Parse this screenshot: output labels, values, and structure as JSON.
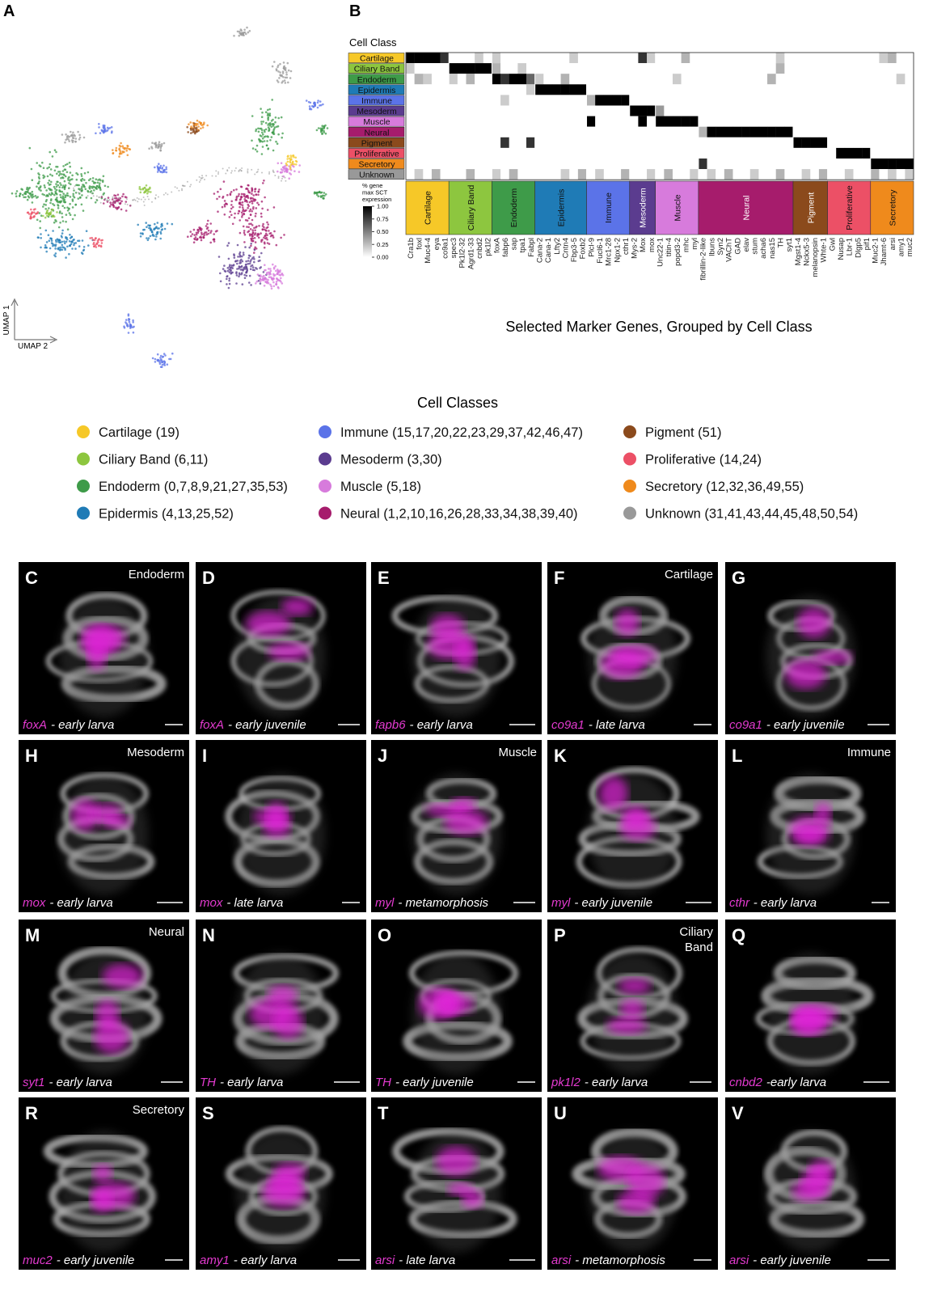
{
  "panels": {
    "a": "A",
    "b": "B"
  },
  "umap": {
    "axis_y": "UMAP 1",
    "axis_x": "UMAP 2"
  },
  "heatmap": {
    "row_title": "Cell Class",
    "rows": [
      {
        "name": "Cartilage",
        "color": "#f6c828",
        "values": [
          1,
          1,
          1,
          1,
          0.8,
          0,
          0,
          0,
          0.2,
          0,
          0.2,
          0,
          0,
          0,
          0,
          0,
          0,
          0,
          0,
          0.2,
          0,
          0,
          0,
          0,
          0,
          0,
          0,
          0.8,
          0.2,
          0,
          0,
          0,
          0.3,
          0,
          0,
          0,
          0,
          0,
          0,
          0,
          0,
          0,
          0,
          0.2,
          0,
          0,
          0,
          0,
          0,
          0,
          0,
          0,
          0,
          0,
          0,
          0.2,
          0.3,
          0,
          0
        ]
      },
      {
        "name": "Ciliary Band",
        "color": "#8dc63f",
        "values": [
          0.2,
          0,
          0,
          0,
          0,
          1,
          1,
          1,
          1,
          1,
          0.3,
          0,
          0,
          0.2,
          0,
          0,
          0,
          0,
          0,
          0,
          0,
          0,
          0,
          0,
          0,
          0,
          0,
          0,
          0,
          0,
          0,
          0,
          0,
          0,
          0,
          0,
          0,
          0,
          0,
          0,
          0,
          0,
          0,
          0.3,
          0,
          0,
          0,
          0,
          0,
          0,
          0,
          0,
          0,
          0,
          0,
          0,
          0,
          0,
          0
        ]
      },
      {
        "name": "Endoderm",
        "color": "#3e9b49",
        "values": [
          0,
          0.3,
          0.2,
          0,
          0,
          0.2,
          0,
          0.3,
          0,
          0,
          1,
          0.8,
          1,
          1,
          0.6,
          0.2,
          0,
          0,
          0.3,
          0,
          0,
          0,
          0,
          0,
          0,
          0,
          0,
          0,
          0,
          0,
          0,
          0.2,
          0,
          0,
          0,
          0,
          0,
          0,
          0,
          0,
          0,
          0,
          0.3,
          0,
          0,
          0,
          0,
          0,
          0,
          0,
          0,
          0,
          0,
          0,
          0,
          0,
          0,
          0.2,
          0
        ]
      },
      {
        "name": "Epidermis",
        "color": "#1f7bb6",
        "values": [
          0,
          0,
          0,
          0,
          0,
          0,
          0,
          0,
          0,
          0,
          0,
          0,
          0,
          0,
          0.2,
          1,
          1,
          1,
          1,
          1,
          1,
          0,
          0,
          0,
          0,
          0,
          0,
          0,
          0,
          0,
          0,
          0,
          0,
          0,
          0,
          0,
          0,
          0,
          0,
          0,
          0,
          0,
          0,
          0,
          0,
          0,
          0,
          0,
          0,
          0,
          0,
          0,
          0,
          0,
          0,
          0,
          0,
          0,
          0
        ]
      },
      {
        "name": "Immune",
        "color": "#5b73e8",
        "values": [
          0,
          0,
          0,
          0,
          0,
          0,
          0,
          0,
          0,
          0,
          0,
          0.2,
          0,
          0,
          0,
          0,
          0,
          0,
          0,
          0,
          0,
          0.3,
          1,
          1,
          1,
          1,
          0,
          0,
          0,
          0,
          0,
          0,
          0,
          0,
          0,
          0,
          0,
          0,
          0,
          0,
          0,
          0,
          0,
          0,
          0,
          0,
          0,
          0,
          0,
          0,
          0,
          0,
          0,
          0,
          0,
          0,
          0,
          0,
          0
        ]
      },
      {
        "name": "Mesoderm",
        "color": "#5b3c8f",
        "values": [
          0,
          0,
          0,
          0,
          0,
          0,
          0,
          0,
          0,
          0,
          0,
          0,
          0,
          0,
          0,
          0,
          0,
          0,
          0,
          0,
          0,
          0,
          0,
          0,
          0,
          0,
          1,
          1,
          1,
          0.4,
          0,
          0,
          0,
          0,
          0,
          0,
          0,
          0,
          0,
          0,
          0,
          0,
          0,
          0,
          0,
          0,
          0,
          0,
          0,
          0,
          0,
          0,
          0,
          0,
          0,
          0,
          0,
          0,
          0
        ]
      },
      {
        "name": "Muscle",
        "color": "#d77bdc",
        "values": [
          0,
          0,
          0,
          0,
          0,
          0,
          0,
          0,
          0,
          0,
          0,
          0,
          0,
          0,
          0,
          0,
          0,
          0,
          0,
          0,
          0,
          1,
          0,
          0,
          0,
          0,
          0,
          1,
          0,
          1,
          1,
          1,
          1,
          1,
          0,
          0,
          0,
          0,
          0,
          0,
          0,
          0,
          0,
          0,
          0,
          0,
          0,
          0,
          0,
          0,
          0,
          0,
          0,
          0,
          0,
          0,
          0,
          0,
          0
        ]
      },
      {
        "name": "Neural",
        "color": "#a61c6c",
        "values": [
          0,
          0,
          0,
          0,
          0,
          0,
          0,
          0,
          0,
          0,
          0,
          0,
          0,
          0,
          0,
          0,
          0,
          0,
          0,
          0,
          0,
          0,
          0,
          0,
          0,
          0,
          0,
          0,
          0,
          0,
          0,
          0,
          0,
          0,
          0.3,
          1,
          1,
          1,
          1,
          1,
          1,
          1,
          1,
          1,
          1,
          0,
          0,
          0,
          0,
          0,
          0,
          0,
          0,
          0,
          0,
          0,
          0,
          0,
          0
        ]
      },
      {
        "name": "Pigment",
        "color": "#8b4a1c",
        "values": [
          0,
          0,
          0,
          0,
          0,
          0,
          0,
          0,
          0,
          0,
          0,
          0.8,
          0,
          0,
          0.8,
          0,
          0,
          0,
          0,
          0,
          0,
          0,
          0,
          0,
          0,
          0,
          0,
          0,
          0,
          0,
          0,
          0,
          0,
          0,
          0,
          0,
          0,
          0,
          0,
          0,
          0,
          0,
          0,
          0,
          0,
          1,
          1,
          1,
          1,
          0,
          0,
          0,
          0,
          0,
          0,
          0,
          0,
          0,
          0
        ]
      },
      {
        "name": "Proliferative",
        "color": "#ec5066",
        "values": [
          0,
          0,
          0,
          0,
          0,
          0,
          0,
          0,
          0,
          0,
          0,
          0,
          0,
          0,
          0,
          0,
          0,
          0,
          0,
          0,
          0,
          0,
          0,
          0,
          0,
          0,
          0,
          0,
          0,
          0,
          0,
          0,
          0,
          0,
          0,
          0,
          0,
          0,
          0,
          0,
          0,
          0,
          0,
          0,
          0,
          0,
          0,
          0,
          0,
          0,
          1,
          1,
          1,
          1,
          0,
          0,
          0,
          0,
          0
        ]
      },
      {
        "name": "Secretory",
        "color": "#ef8a1c",
        "values": [
          0,
          0,
          0,
          0,
          0,
          0,
          0,
          0,
          0,
          0,
          0,
          0,
          0,
          0,
          0,
          0,
          0,
          0,
          0,
          0,
          0,
          0,
          0,
          0,
          0,
          0,
          0,
          0,
          0,
          0,
          0,
          0,
          0,
          0,
          0.8,
          0,
          0,
          0,
          0,
          0,
          0,
          0,
          0,
          0,
          0,
          0,
          0,
          0,
          0,
          0,
          0,
          0,
          0,
          0,
          1,
          1,
          1,
          1,
          1
        ]
      },
      {
        "name": "Unknown",
        "color": "#999999",
        "values": [
          0,
          0.2,
          0,
          0.3,
          0,
          0,
          0,
          0.3,
          0,
          0,
          0.2,
          0,
          0.3,
          0,
          0,
          0,
          0,
          0,
          0.2,
          0,
          0.3,
          0,
          0.2,
          0,
          0,
          0.3,
          0,
          0,
          0.2,
          0,
          0.3,
          0,
          0,
          0.2,
          0,
          0.2,
          0,
          0.3,
          0,
          0,
          0.2,
          0,
          0,
          0.3,
          0,
          0,
          0.2,
          0,
          0.3,
          0,
          0,
          0.2,
          0,
          0,
          0.3,
          0,
          0.2,
          0,
          0.2
        ]
      }
    ],
    "groups": [
      {
        "name": "Cartilage",
        "genes": [
          "Cra1b",
          "foxl",
          "Muc4-4",
          "eya",
          "co9a1"
        ]
      },
      {
        "name": "Ciliary Band",
        "genes": [
          "spec3",
          "Pk1l2-32",
          "Agrd1-33",
          "cnbd2",
          "pk1l2"
        ]
      },
      {
        "name": "Endoderm",
        "genes": [
          "foxA",
          "fabp6",
          "sap",
          "tpa1",
          "Fabpl"
        ]
      },
      {
        "name": "Epidermis",
        "genes": [
          "Cana-2",
          "Cana-1",
          "Lfty2",
          "Cntn4",
          "Fbp3-5",
          "Foxb2"
        ]
      },
      {
        "name": "Immune",
        "genes": [
          "Plcl-9",
          "Fucl6-1",
          "Mrc1-28",
          "Npx1-2",
          "cthr1"
        ]
      },
      {
        "name": "Mesoderm",
        "genes": [
          "Mys-2",
          "Mox",
          "mox"
        ]
      },
      {
        "name": "Muscle",
        "genes": [
          "Unc22-1",
          "titin-4",
          "popd3-2",
          "mhc",
          "myl"
        ]
      },
      {
        "name": "Neural",
        "genes": [
          "fibrillin-2-like",
          "lbuns",
          "Syn2",
          "VAChT",
          "GAD",
          "elav",
          "stum",
          "acha6",
          "nas15",
          "TH",
          "syt1"
        ]
      },
      {
        "name": "Pigment",
        "genes": [
          "Mgst1-4",
          "Nckx5-3",
          "melanopsin",
          "Whte-1"
        ]
      },
      {
        "name": "Proliferative",
        "genes": [
          "Gwl",
          "Nusap",
          "Lbr-1",
          "Dlgp5",
          "pif1"
        ]
      },
      {
        "name": "Secretory",
        "genes": [
          "Muc2-1",
          "Jhamt-6",
          "arsi",
          "amy1",
          "muc2"
        ]
      }
    ],
    "scale": {
      "title": [
        "% gene",
        "max SCT",
        "expression"
      ],
      "ticks": [
        {
          "value": 1,
          "label": "1.00"
        },
        {
          "value": 0.75,
          "label": "0.75"
        },
        {
          "value": 0.5,
          "label": "0.50"
        },
        {
          "value": 0.25,
          "label": "0.25"
        },
        {
          "value": 0,
          "label": "0.00"
        }
      ]
    },
    "caption": "Selected Marker Genes, Grouped by Cell Class"
  },
  "legend": {
    "title": "Cell Classes",
    "items": [
      {
        "label": "Cartilage (19)",
        "color": "#f6c828"
      },
      {
        "label": "Ciliary Band (6,11)",
        "color": "#8dc63f"
      },
      {
        "label": "Endoderm (0,7,8,9,21,27,35,53)",
        "color": "#3e9b49"
      },
      {
        "label": "Epidermis (4,13,25,52)",
        "color": "#1f7bb6"
      },
      {
        "label": "Immune (15,17,20,22,23,29,37,42,46,47)",
        "color": "#5b73e8"
      },
      {
        "label": "Mesoderm (3,30)",
        "color": "#5b3c8f"
      },
      {
        "label": "Muscle (5,18)",
        "color": "#d77bdc"
      },
      {
        "label": "Neural (1,2,10,16,26,28,33,34,38,39,40)",
        "color": "#a61c6c"
      },
      {
        "label": "Pigment (51)",
        "color": "#8b4a1c"
      },
      {
        "label": "Proliferative (14,24)",
        "color": "#ec5066"
      },
      {
        "label": "Secretory (12,32,36,49,55)",
        "color": "#ef8a1c"
      },
      {
        "label": "Unknown (31,41,43,44,45,48,50,54)",
        "color": "#999999"
      }
    ]
  },
  "images": [
    {
      "letter": "C",
      "class_lines": [
        "Endoderm"
      ],
      "gene": "foxA",
      "stage": "- early larva"
    },
    {
      "letter": "D",
      "gene": "foxA",
      "stage": "- early juvenile"
    },
    {
      "letter": "E",
      "gene": "fapb6",
      "stage": "- early larva"
    },
    {
      "letter": "F",
      "class_lines": [
        "Cartilage"
      ],
      "gene": "co9a1",
      "stage": "- late larva"
    },
    {
      "letter": "G",
      "gene": "co9a1",
      "stage": "- early juvenile"
    },
    {
      "letter": "H",
      "class_lines": [
        "Mesoderm"
      ],
      "gene": "mox",
      "stage": "- early larva"
    },
    {
      "letter": "I",
      "gene": "mox",
      "stage": "- late larva"
    },
    {
      "letter": "J",
      "class_lines": [
        "Muscle"
      ],
      "gene": "myl",
      "stage": "- metamorphosis"
    },
    {
      "letter": "K",
      "gene": "myl",
      "stage": "- early juvenile"
    },
    {
      "letter": "L",
      "class_lines": [
        "Immune"
      ],
      "gene": "cthr",
      "stage": "- early larva"
    },
    {
      "letter": "M",
      "class_lines": [
        "Neural"
      ],
      "gene": "syt1",
      "stage": "- early larva"
    },
    {
      "letter": "N",
      "gene": "TH",
      "stage": "- early larva"
    },
    {
      "letter": "O",
      "gene": "TH",
      "stage": "- early juvenile"
    },
    {
      "letter": "P",
      "class_lines": [
        "Ciliary",
        "Band"
      ],
      "gene": "pk1l2",
      "stage": "- early larva"
    },
    {
      "letter": "Q",
      "gene": "cnbd2",
      "stage": "-early larva"
    },
    {
      "letter": "R",
      "class_lines": [
        "Secretory"
      ],
      "gene": "muc2",
      "stage": "- early juvenile"
    },
    {
      "letter": "S",
      "gene": "amy1",
      "stage": "- early larva"
    },
    {
      "letter": "T",
      "gene": "arsi",
      "stage": "- late larva"
    },
    {
      "letter": "U",
      "gene": "arsi",
      "stage": "- metamorphosis"
    },
    {
      "letter": "V",
      "gene": "arsi",
      "stage": "- early juvenile"
    }
  ]
}
